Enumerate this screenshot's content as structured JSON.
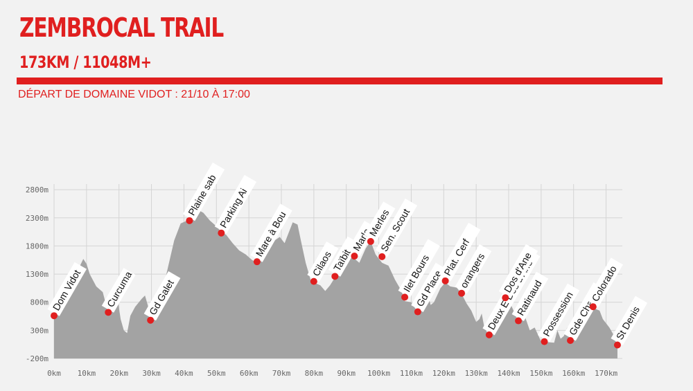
{
  "header": {
    "title": "ZEMBROCAL TRAIL",
    "subtitle": "173KM / 11048M+",
    "depart": "DÉPART DE DOMAINE VIDOT : 21/10 À 17:00"
  },
  "colors": {
    "accent": "#e01f1f",
    "profile_fill": "#a3a3a3",
    "grid": "#d4d4d4",
    "background": "#f2f2f2"
  },
  "chart_data": {
    "type": "area",
    "title": "",
    "xlabel": "",
    "ylabel": "",
    "xlim": [
      0,
      175
    ],
    "ylim": [
      -200,
      2900
    ],
    "x_ticks": [
      {
        "v": 0,
        "label": "0km"
      },
      {
        "v": 10,
        "label": "10km"
      },
      {
        "v": 20,
        "label": "20km"
      },
      {
        "v": 30,
        "label": "30km"
      },
      {
        "v": 40,
        "label": "40km"
      },
      {
        "v": 50,
        "label": "50km"
      },
      {
        "v": 60,
        "label": "60km"
      },
      {
        "v": 70,
        "label": "70km"
      },
      {
        "v": 80,
        "label": "80km"
      },
      {
        "v": 90,
        "label": "90km"
      },
      {
        "v": 100,
        "label": "100km"
      },
      {
        "v": 110,
        "label": "110km"
      },
      {
        "v": 120,
        "label": "120km"
      },
      {
        "v": 130,
        "label": "130km"
      },
      {
        "v": 140,
        "label": "140km"
      },
      {
        "v": 150,
        "label": "150km"
      },
      {
        "v": 160,
        "label": "160km"
      },
      {
        "v": 170,
        "label": "170km"
      }
    ],
    "y_ticks": [
      {
        "v": -200,
        "label": "-200m"
      },
      {
        "v": 300,
        "label": "300m"
      },
      {
        "v": 800,
        "label": "800m"
      },
      {
        "v": 1300,
        "label": "1300m"
      },
      {
        "v": 1800,
        "label": "1800m"
      },
      {
        "v": 2300,
        "label": "2300m"
      },
      {
        "v": 2800,
        "label": "2800m"
      }
    ],
    "grid": true,
    "profile": [
      [
        0,
        550
      ],
      [
        2,
        680
      ],
      [
        4,
        900
      ],
      [
        6,
        1200
      ],
      [
        8,
        1450
      ],
      [
        9,
        1570
      ],
      [
        10,
        1480
      ],
      [
        11,
        1300
      ],
      [
        13,
        1080
      ],
      [
        15,
        980
      ],
      [
        16.7,
        600
      ],
      [
        18,
        760
      ],
      [
        19.5,
        880
      ],
      [
        20.5,
        500
      ],
      [
        21.5,
        300
      ],
      [
        22.5,
        250
      ],
      [
        23.5,
        560
      ],
      [
        25,
        720
      ],
      [
        27,
        860
      ],
      [
        28,
        920
      ],
      [
        29,
        720
      ],
      [
        29.7,
        470
      ],
      [
        31,
        560
      ],
      [
        33,
        900
      ],
      [
        35,
        1400
      ],
      [
        37,
        1900
      ],
      [
        39,
        2200
      ],
      [
        41,
        2250
      ],
      [
        42,
        2320
      ],
      [
        44,
        2380
      ],
      [
        45,
        2420
      ],
      [
        46,
        2390
      ],
      [
        48,
        2250
      ],
      [
        50,
        2150
      ],
      [
        51.5,
        2050
      ],
      [
        53,
        2000
      ],
      [
        55,
        1850
      ],
      [
        57,
        1720
      ],
      [
        59,
        1650
      ],
      [
        61,
        1550
      ],
      [
        62.5,
        1500
      ],
      [
        64,
        1600
      ],
      [
        66,
        1760
      ],
      [
        68,
        1900
      ],
      [
        69.5,
        1960
      ],
      [
        71,
        1850
      ],
      [
        72,
        2000
      ],
      [
        73.5,
        2220
      ],
      [
        75,
        2180
      ],
      [
        76,
        1900
      ],
      [
        77.5,
        1500
      ],
      [
        79,
        1200
      ],
      [
        80,
        1150
      ],
      [
        82,
        1100
      ],
      [
        83.5,
        1000
      ],
      [
        85,
        1100
      ],
      [
        86.5,
        1240
      ],
      [
        88,
        1400
      ],
      [
        90,
        1700
      ],
      [
        92,
        1600
      ],
      [
        94,
        1500
      ],
      [
        96,
        1760
      ],
      [
        97.5,
        1880
      ],
      [
        99,
        1650
      ],
      [
        101,
        1500
      ],
      [
        103,
        1450
      ],
      [
        105,
        1200
      ],
      [
        107,
        1000
      ],
      [
        108,
        820
      ],
      [
        110,
        800
      ],
      [
        112,
        620
      ],
      [
        113.5,
        780
      ],
      [
        115,
        950
      ],
      [
        116,
        750
      ],
      [
        117,
        800
      ],
      [
        119,
        1050
      ],
      [
        120.5,
        1150
      ],
      [
        122,
        1080
      ],
      [
        124,
        1060
      ],
      [
        125.5,
        950
      ],
      [
        127,
        780
      ],
      [
        128.5,
        650
      ],
      [
        130,
        450
      ],
      [
        131,
        500
      ],
      [
        131.7,
        600
      ],
      [
        132.5,
        350
      ],
      [
        134,
        200
      ],
      [
        136,
        300
      ],
      [
        138,
        750
      ],
      [
        139,
        900
      ],
      [
        140,
        850
      ],
      [
        141.5,
        650
      ],
      [
        143,
        450
      ],
      [
        145,
        550
      ],
      [
        146.5,
        300
      ],
      [
        148,
        350
      ],
      [
        150,
        100
      ],
      [
        152,
        90
      ],
      [
        154,
        80
      ],
      [
        155,
        300
      ],
      [
        156,
        150
      ],
      [
        157,
        200
      ],
      [
        158,
        350
      ],
      [
        159,
        100
      ],
      [
        160,
        150
      ],
      [
        161,
        350
      ],
      [
        162,
        450
      ],
      [
        164,
        600
      ],
      [
        166,
        700
      ],
      [
        168,
        650
      ],
      [
        169,
        500
      ],
      [
        171,
        350
      ],
      [
        172.5,
        200
      ],
      [
        173,
        100
      ],
      [
        173.5,
        20
      ]
    ],
    "checkpoints": [
      {
        "name": "Dom Vidot",
        "km": 0,
        "alt": 560
      },
      {
        "name": "Curcuma",
        "km": 16.7,
        "alt": 620
      },
      {
        "name": "Gd Galet",
        "km": 29.7,
        "alt": 480
      },
      {
        "name": "Plaine sab",
        "km": 41.7,
        "alt": 2250
      },
      {
        "name": "Parking Ai",
        "km": 51.5,
        "alt": 2030
      },
      {
        "name": "Mare à Bou",
        "km": 62.5,
        "alt": 1520
      },
      {
        "name": "Cilaos",
        "km": 80,
        "alt": 1170
      },
      {
        "name": "Taïbit",
        "km": 86.5,
        "alt": 1260
      },
      {
        "name": "Marla",
        "km": 92.5,
        "alt": 1620
      },
      {
        "name": "Merles",
        "km": 97.5,
        "alt": 1880
      },
      {
        "name": "Sen. Scout",
        "km": 101,
        "alt": 1610
      },
      {
        "name": "Ilet Bours",
        "km": 108,
        "alt": 890
      },
      {
        "name": "Gd Place",
        "km": 112,
        "alt": 630
      },
      {
        "name": "Plat. Cerf",
        "km": 120.5,
        "alt": 1180
      },
      {
        "name": "orangers",
        "km": 125.5,
        "alt": 960
      },
      {
        "name": "Deux E Dos d'Ane",
        "km": 134,
        "alt": 220
      },
      {
        "name": "Dos d'Ane",
        "km": 139,
        "alt": 880
      },
      {
        "name": "Ratinaud",
        "km": 143,
        "alt": 470
      },
      {
        "name": "Possession",
        "km": 151,
        "alt": 100
      },
      {
        "name": "Gde Chalou",
        "km": 159,
        "alt": 120
      },
      {
        "name": "Colorado",
        "km": 166,
        "alt": 720
      },
      {
        "name": "St Denis",
        "km": 173.5,
        "alt": 40
      }
    ]
  }
}
